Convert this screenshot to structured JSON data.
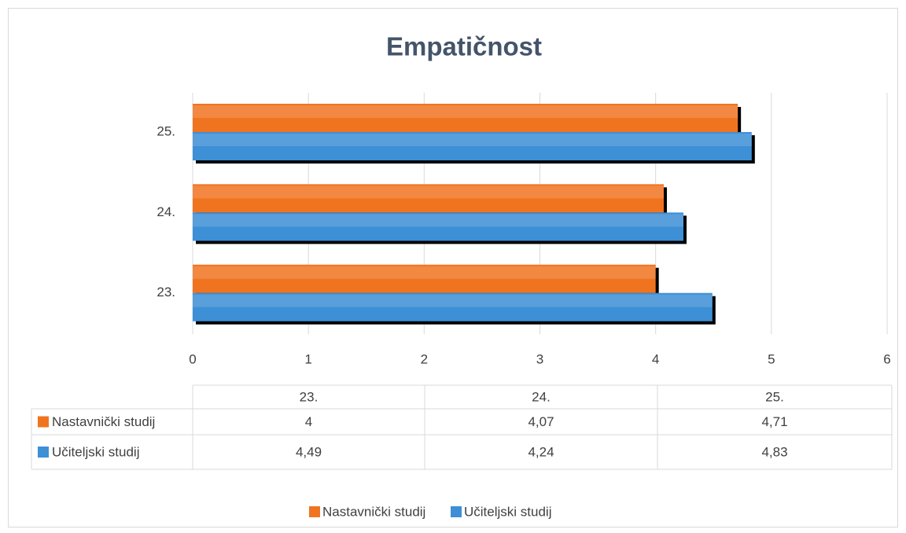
{
  "chart_data": {
    "type": "bar",
    "orientation": "horizontal",
    "title": "Empatičnost",
    "categories": [
      "23.",
      "24.",
      "25."
    ],
    "series": [
      {
        "name": "Nastavnički studij",
        "color": "#f07420",
        "values": [
          4,
          4.07,
          4.71
        ],
        "value_labels": [
          "4",
          "4,07",
          "4,71"
        ]
      },
      {
        "name": "Učiteljski studij",
        "color": "#3d8fd6",
        "values": [
          4.49,
          4.24,
          4.83
        ],
        "value_labels": [
          "4,49",
          "4,24",
          "4,83"
        ]
      }
    ],
    "xlim": [
      0,
      6
    ],
    "xticks": [
      0,
      1,
      2,
      3,
      4,
      5,
      6
    ],
    "grid": true,
    "legend": "bottom",
    "data_table": true
  }
}
